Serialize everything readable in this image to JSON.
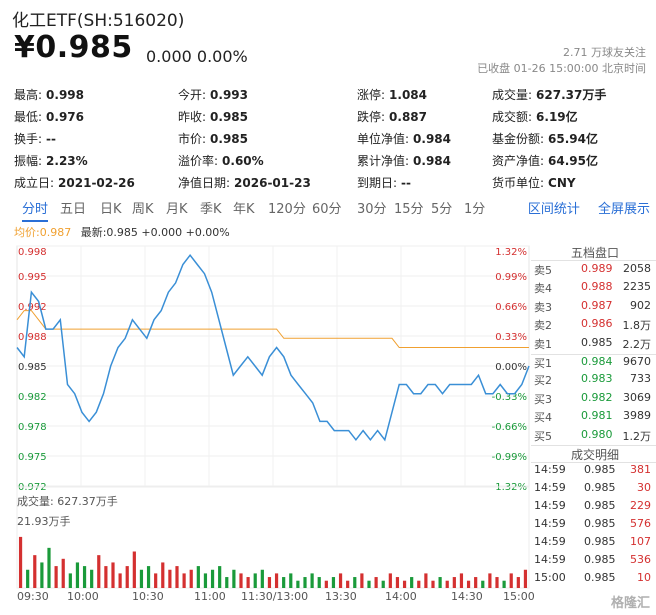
{
  "header": {
    "title": "化工ETF(SH:516020)",
    "price": "¥0.985",
    "change": "0.000 0.00%",
    "followers": "2.71 万球友关注",
    "status": "已收盘 01-26 15:00:00 北京时间"
  },
  "stats": {
    "c1": [
      {
        "label": "最高:",
        "value": "0.998",
        "color": "red"
      },
      {
        "label": "最低:",
        "value": "0.976",
        "color": "green"
      },
      {
        "label": "换手:",
        "value": "--",
        "color": ""
      },
      {
        "label": "振幅:",
        "value": "2.23%",
        "color": ""
      },
      {
        "label": "成立日:",
        "value": "2021-02-26",
        "color": ""
      }
    ],
    "c2": [
      {
        "label": "今开:",
        "value": "0.993",
        "color": "red"
      },
      {
        "label": "昨收:",
        "value": "0.985",
        "color": ""
      },
      {
        "label": "市价:",
        "value": "0.985",
        "color": ""
      },
      {
        "label": "溢价率:",
        "value": "0.60%",
        "color": ""
      },
      {
        "label": "净值日期:",
        "value": "2026-01-23",
        "color": ""
      }
    ],
    "c3": [
      {
        "label": "涨停:",
        "value": "1.084",
        "color": "red"
      },
      {
        "label": "跌停:",
        "value": "0.887",
        "color": "green"
      },
      {
        "label": "单位净值:",
        "value": "0.984",
        "color": ""
      },
      {
        "label": "累计净值:",
        "value": "0.984",
        "color": ""
      },
      {
        "label": "到期日:",
        "value": "--",
        "color": ""
      }
    ],
    "c4": [
      {
        "label": "成交量:",
        "value": "627.37万手",
        "color": ""
      },
      {
        "label": "成交额:",
        "value": "6.19亿",
        "color": ""
      },
      {
        "label": "基金份额:",
        "value": "65.94亿",
        "color": ""
      },
      {
        "label": "资产净值:",
        "value": "64.95亿",
        "color": ""
      },
      {
        "label": "货币单位:",
        "value": "CNY",
        "color": ""
      }
    ]
  },
  "tabs": [
    "分时",
    "五日",
    "日K",
    "周K",
    "月K",
    "季K",
    "年K",
    "120分",
    "60分",
    "30分",
    "15分",
    "5分",
    "1分"
  ],
  "active_tab": "分时",
  "right_links": [
    "区间统计",
    "全屏展示"
  ],
  "legend": {
    "avg": "均价:0.987",
    "latest": "最新:0.985 +0.000 +0.00%"
  },
  "orderbook": {
    "title": "五档盘口",
    "asks": [
      {
        "label": "卖5",
        "price": "0.989",
        "vol": "2058"
      },
      {
        "label": "卖4",
        "price": "0.988",
        "vol": "2235"
      },
      {
        "label": "卖3",
        "price": "0.987",
        "vol": "902"
      },
      {
        "label": "卖2",
        "price": "0.986",
        "vol": "1.8万"
      },
      {
        "label": "卖1",
        "price": "0.985",
        "vol": "2.2万"
      }
    ],
    "bids": [
      {
        "label": "买1",
        "price": "0.984",
        "vol": "9670"
      },
      {
        "label": "买2",
        "price": "0.983",
        "vol": "733"
      },
      {
        "label": "买3",
        "price": "0.982",
        "vol": "3069"
      },
      {
        "label": "买4",
        "price": "0.981",
        "vol": "3989"
      },
      {
        "label": "买5",
        "price": "0.980",
        "vol": "1.2万"
      }
    ],
    "trades_title": "成交明细",
    "trades": [
      {
        "time": "14:59",
        "price": "0.985",
        "vol": "381"
      },
      {
        "time": "14:59",
        "price": "0.985",
        "vol": "30"
      },
      {
        "time": "14:59",
        "price": "0.985",
        "vol": "229"
      },
      {
        "time": "14:59",
        "price": "0.985",
        "vol": "576"
      },
      {
        "time": "14:59",
        "price": "0.985",
        "vol": "107"
      },
      {
        "time": "14:59",
        "price": "0.985",
        "vol": "536"
      },
      {
        "time": "15:00",
        "price": "0.985",
        "vol": "10"
      }
    ]
  },
  "volume": {
    "label": "成交量: 627.37万手",
    "max_label": "21.93万手"
  },
  "watermark": "格隆汇",
  "colors": {
    "up": "#d43030",
    "down": "#1a9a3a",
    "price_line": "#3a8fd6",
    "avg_line": "#f0a030",
    "accent": "#2a6fd6"
  },
  "chart_data": {
    "type": "line",
    "title": "",
    "ylim": [
      0.972,
      0.998
    ],
    "y_ticks": [
      "0.998",
      "0.995",
      "0.992",
      "0.988",
      "0.985",
      "0.982",
      "0.978",
      "0.975",
      "0.972"
    ],
    "pct_ticks": [
      "1.32%",
      "0.99%",
      "0.66%",
      "0.33%",
      "0.00%",
      "-0.33%",
      "-0.66%",
      "-0.99%",
      "-1.32%"
    ],
    "x_ticks": [
      "09:30",
      "10:00",
      "10:30",
      "11:00",
      "11:30/13:00",
      "13:30",
      "14:00",
      "14:30",
      "15:00"
    ],
    "series": [
      {
        "name": "最新",
        "values": [
          0.987,
          0.986,
          0.993,
          0.992,
          0.989,
          0.989,
          0.99,
          0.983,
          0.982,
          0.98,
          0.979,
          0.98,
          0.982,
          0.985,
          0.987,
          0.988,
          0.99,
          0.989,
          0.988,
          0.99,
          0.991,
          0.993,
          0.994,
          0.996,
          0.997,
          0.996,
          0.995,
          0.993,
          0.99,
          0.987,
          0.984,
          0.985,
          0.986,
          0.985,
          0.984,
          0.986,
          0.987,
          0.986,
          0.984,
          0.983,
          0.982,
          0.981,
          0.979,
          0.979,
          0.978,
          0.978,
          0.978,
          0.977,
          0.978,
          0.977,
          0.978,
          0.977,
          0.98,
          0.983,
          0.983,
          0.982,
          0.982,
          0.983,
          0.983,
          0.982,
          0.983,
          0.983,
          0.983,
          0.983,
          0.984,
          0.982,
          0.982,
          0.983,
          0.982,
          0.982,
          0.983,
          0.985
        ]
      },
      {
        "name": "均价",
        "values": [
          0.99,
          0.991,
          0.991,
          0.99,
          0.989,
          0.989,
          0.989,
          0.989,
          0.989,
          0.989,
          0.989,
          0.989,
          0.989,
          0.989,
          0.989,
          0.989,
          0.989,
          0.989,
          0.989,
          0.989,
          0.989,
          0.989,
          0.989,
          0.989,
          0.989,
          0.989,
          0.989,
          0.989,
          0.989,
          0.989,
          0.989,
          0.989,
          0.989,
          0.989,
          0.989,
          0.989,
          0.989,
          0.988,
          0.988,
          0.988,
          0.988,
          0.988,
          0.988,
          0.988,
          0.988,
          0.988,
          0.988,
          0.988,
          0.988,
          0.988,
          0.988,
          0.988,
          0.988,
          0.987,
          0.987,
          0.987,
          0.987,
          0.987,
          0.987,
          0.987,
          0.987,
          0.987,
          0.987,
          0.987,
          0.987,
          0.987,
          0.987,
          0.987,
          0.987,
          0.987,
          0.987,
          0.987
        ]
      }
    ],
    "volume_max": 21.93,
    "volume": [
      0.7,
      0.25,
      0.45,
      0.35,
      0.55,
      0.3,
      0.4,
      0.2,
      0.35,
      0.3,
      0.25,
      0.45,
      0.3,
      0.35,
      0.2,
      0.3,
      0.5,
      0.25,
      0.3,
      0.2,
      0.35,
      0.25,
      0.3,
      0.2,
      0.25,
      0.3,
      0.2,
      0.25,
      0.3,
      0.15,
      0.25,
      0.2,
      0.15,
      0.2,
      0.25,
      0.15,
      0.2,
      0.15,
      0.2,
      0.1,
      0.15,
      0.2,
      0.15,
      0.1,
      0.15,
      0.2,
      0.1,
      0.15,
      0.2,
      0.1,
      0.15,
      0.1,
      0.2,
      0.15,
      0.1,
      0.15,
      0.1,
      0.2,
      0.1,
      0.15,
      0.1,
      0.15,
      0.2,
      0.1,
      0.15,
      0.1,
      0.2,
      0.15,
      0.1,
      0.2,
      0.15,
      0.25
    ]
  }
}
